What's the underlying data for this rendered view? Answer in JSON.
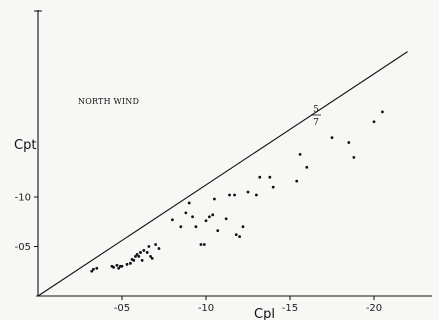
{
  "chart_data": {
    "type": "scatter",
    "title": "",
    "xlabel": "Cpl",
    "ylabel": "Cpt",
    "xlim": [
      0,
      -2.2
    ],
    "ylim": [
      0,
      -2.65
    ],
    "grid": false,
    "xticks": [
      {
        "value": -0.5,
        "label": "-05"
      },
      {
        "value": -1.0,
        "label": "-10"
      },
      {
        "value": -1.5,
        "label": "-15"
      },
      {
        "value": -2.0,
        "label": "-20"
      }
    ],
    "yticks": [
      {
        "value": -0.5,
        "label": "-05"
      },
      {
        "value": -1.0,
        "label": "-10"
      }
    ],
    "annotation": "NORTH WIND",
    "line": {
      "label_top": "5",
      "label_bottom": "7",
      "slope": 1.122,
      "intercept": 0.0
    },
    "series": [
      {
        "points": [
          [
            -0.33,
            -0.27
          ],
          [
            -0.35,
            -0.28
          ],
          [
            -0.32,
            -0.25
          ],
          [
            -0.44,
            -0.3
          ],
          [
            -0.45,
            -0.29
          ],
          [
            -0.47,
            -0.31
          ],
          [
            -0.48,
            -0.28
          ],
          [
            -0.49,
            -0.3
          ],
          [
            -0.5,
            -0.3
          ],
          [
            -0.53,
            -0.32
          ],
          [
            -0.55,
            -0.33
          ],
          [
            -0.56,
            -0.37
          ],
          [
            -0.57,
            -0.36
          ],
          [
            -0.58,
            -0.4
          ],
          [
            -0.59,
            -0.42
          ],
          [
            -0.6,
            -0.4
          ],
          [
            -0.61,
            -0.44
          ],
          [
            -0.62,
            -0.36
          ],
          [
            -0.63,
            -0.46
          ],
          [
            -0.65,
            -0.44
          ],
          [
            -0.66,
            -0.5
          ],
          [
            -0.67,
            -0.4
          ],
          [
            -0.68,
            -0.38
          ],
          [
            -0.7,
            -0.52
          ],
          [
            -0.72,
            -0.48
          ],
          [
            -0.8,
            -0.77
          ],
          [
            -0.85,
            -0.7
          ],
          [
            -0.88,
            -0.84
          ],
          [
            -0.9,
            -0.94
          ],
          [
            -0.92,
            -0.8
          ],
          [
            -0.94,
            -0.7
          ],
          [
            -0.97,
            -0.52
          ],
          [
            -0.99,
            -0.52
          ],
          [
            -1.0,
            -0.76
          ],
          [
            -1.02,
            -0.8
          ],
          [
            -1.04,
            -0.82
          ],
          [
            -1.05,
            -0.98
          ],
          [
            -1.07,
            -0.66
          ],
          [
            -1.12,
            -0.78
          ],
          [
            -1.14,
            -1.02
          ],
          [
            -1.17,
            -1.02
          ],
          [
            -1.18,
            -0.62
          ],
          [
            -1.2,
            -0.6
          ],
          [
            -1.22,
            -0.7
          ],
          [
            -1.25,
            -1.05
          ],
          [
            -1.3,
            -1.02
          ],
          [
            -1.32,
            -1.2
          ],
          [
            -1.38,
            -1.2
          ],
          [
            -1.4,
            -1.1
          ],
          [
            -1.54,
            -1.16
          ],
          [
            -1.56,
            -1.43
          ],
          [
            -1.6,
            -1.3
          ],
          [
            -1.75,
            -1.6
          ],
          [
            -1.85,
            -1.55
          ],
          [
            -1.88,
            -1.4
          ],
          [
            -2.0,
            -1.76
          ],
          [
            -2.05,
            -1.86
          ]
        ]
      }
    ]
  }
}
